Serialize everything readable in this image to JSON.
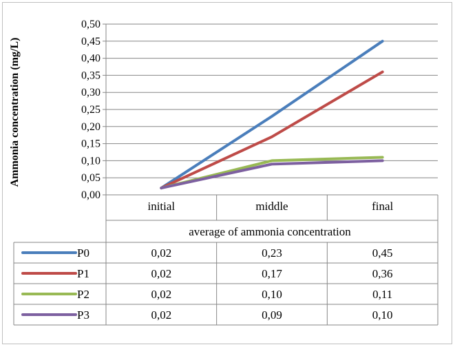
{
  "chart_data": {
    "type": "line",
    "ylabel": "Ammonia concentration  (mg/L)",
    "xlabel": "average of ammonia concentration",
    "categories": [
      "initial",
      "middle",
      "final"
    ],
    "ylim": [
      0,
      0.5
    ],
    "yticks": [
      "0,00",
      "0,05",
      "0,10",
      "0,15",
      "0,20",
      "0,25",
      "0,30",
      "0,35",
      "0,40",
      "0,45",
      "0,50"
    ],
    "grid": true,
    "legend": "data-table",
    "series": [
      {
        "name": "P0",
        "color": "#4a7ebb",
        "values": [
          0.02,
          0.23,
          0.45
        ],
        "labels": [
          "0,02",
          "0,23",
          "0,45"
        ]
      },
      {
        "name": "P1",
        "color": "#be4b48",
        "values": [
          0.02,
          0.17,
          0.36
        ],
        "labels": [
          "0,02",
          "0,17",
          "0,36"
        ]
      },
      {
        "name": "P2",
        "color": "#98b954",
        "values": [
          0.02,
          0.1,
          0.11
        ],
        "labels": [
          "0,02",
          "0,10",
          "0,11"
        ]
      },
      {
        "name": "P3",
        "color": "#7d60a0",
        "values": [
          0.02,
          0.09,
          0.1
        ],
        "labels": [
          "0,02",
          "0,09",
          "0,10"
        ]
      }
    ]
  }
}
